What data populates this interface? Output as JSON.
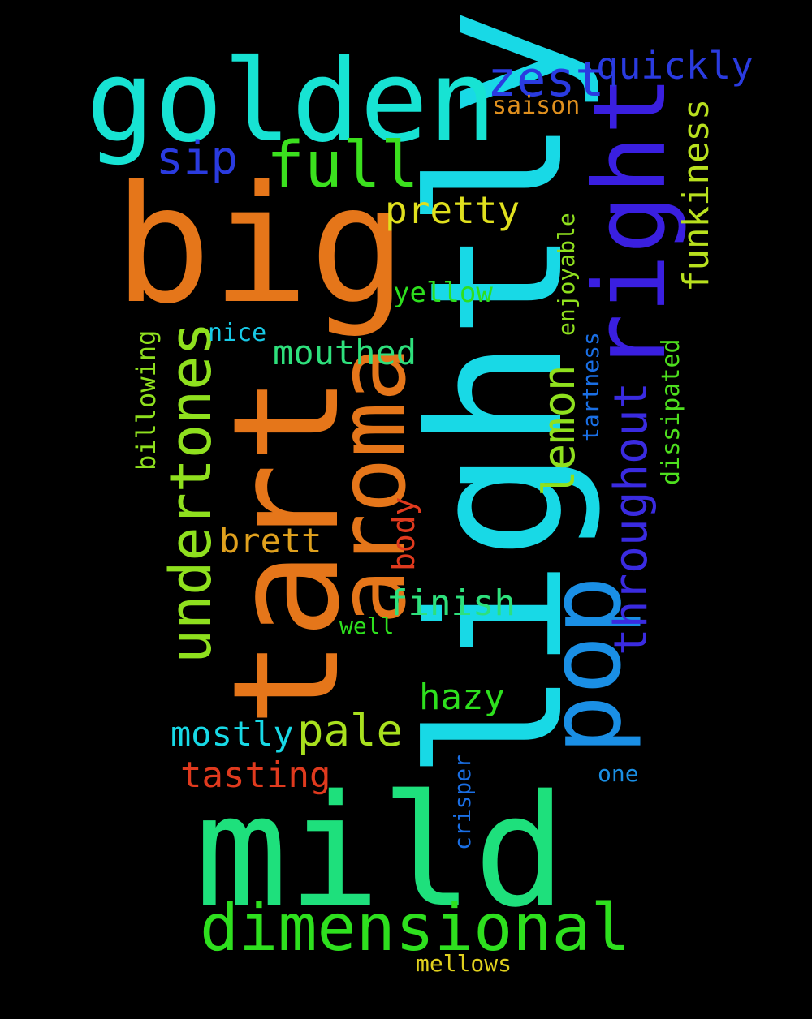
{
  "words": [
    {
      "text": "lightly",
      "color": "#18d9e6"
    },
    {
      "text": "big",
      "color": "#e5761a"
    },
    {
      "text": "tart",
      "color": "#e5761a"
    },
    {
      "text": "mild",
      "color": "#1ee07c"
    },
    {
      "text": "golden",
      "color": "#17e3d3"
    },
    {
      "text": "aroma",
      "color": "#e5761a"
    },
    {
      "text": "pop",
      "color": "#1a8fe5"
    },
    {
      "text": "right",
      "color": "#3a1fe0"
    },
    {
      "text": "dimensional",
      "color": "#2ee01e"
    },
    {
      "text": "undertones",
      "color": "#8fe01e"
    },
    {
      "text": "full",
      "color": "#3be01e"
    },
    {
      "text": "zest",
      "color": "#2a3be0"
    },
    {
      "text": "throughout",
      "color": "#3a2be0"
    },
    {
      "text": "quickly",
      "color": "#2a3be0"
    },
    {
      "text": "sip",
      "color": "#2a3be0"
    },
    {
      "text": "pretty",
      "color": "#e0e01e"
    },
    {
      "text": "lemon",
      "color": "#8fe01e"
    },
    {
      "text": "pale",
      "color": "#a8e01e"
    },
    {
      "text": "funkiness",
      "color": "#b8e01e"
    },
    {
      "text": "mouthed",
      "color": "#2ee07c"
    },
    {
      "text": "finish",
      "color": "#2ee07c"
    },
    {
      "text": "hazy",
      "color": "#2ee01e"
    },
    {
      "text": "tasting",
      "color": "#e03a1e"
    },
    {
      "text": "mostly",
      "color": "#18d9e6"
    },
    {
      "text": "brett",
      "color": "#e0a11e"
    },
    {
      "text": "body",
      "color": "#e03a1e"
    },
    {
      "text": "yellow",
      "color": "#2ee01e"
    },
    {
      "text": "saison",
      "color": "#e0901e"
    },
    {
      "text": "billowing",
      "color": "#8fe01e"
    },
    {
      "text": "enjoyable",
      "color": "#8fe01e"
    },
    {
      "text": "tartness",
      "color": "#1a6fe5"
    },
    {
      "text": "dissipated",
      "color": "#4ee01e"
    },
    {
      "text": "nice",
      "color": "#18c9e6"
    },
    {
      "text": "well",
      "color": "#2ee01e"
    },
    {
      "text": "crisper",
      "color": "#1a6fe5"
    },
    {
      "text": "one",
      "color": "#1a8fe5"
    },
    {
      "text": "mellows",
      "color": "#e0d01e"
    }
  ]
}
